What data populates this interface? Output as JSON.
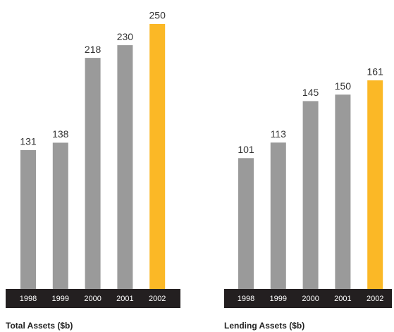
{
  "chart_data": [
    {
      "type": "bar",
      "title": "Total Assets ($b)",
      "categories": [
        "1998",
        "1999",
        "2000",
        "2001",
        "2002"
      ],
      "values": [
        131,
        138,
        218,
        230,
        250
      ],
      "colors": [
        "#9a9a9a",
        "#9a9a9a",
        "#9a9a9a",
        "#9a9a9a",
        "#fbb826"
      ]
    },
    {
      "type": "bar",
      "title": "Lending Assets ($b)",
      "categories": [
        "1998",
        "1999",
        "2000",
        "2001",
        "2002"
      ],
      "values": [
        101,
        113,
        145,
        150,
        161
      ],
      "colors": [
        "#9a9a9a",
        "#9a9a9a",
        "#9a9a9a",
        "#9a9a9a",
        "#fbb826"
      ]
    }
  ]
}
